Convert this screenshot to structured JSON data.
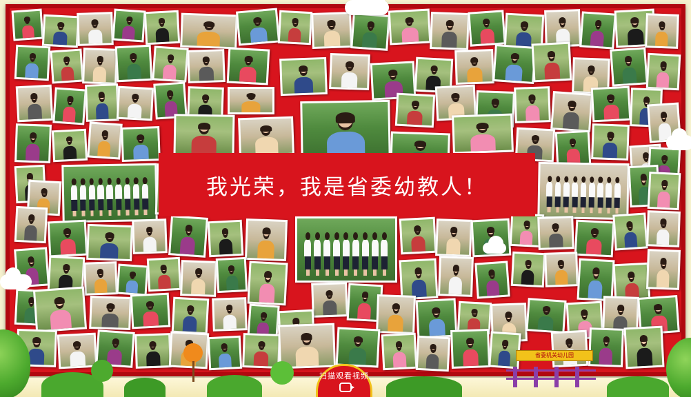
{
  "banner": {
    "text": "我光荣，我是省委幼教人！"
  },
  "scan_badge": {
    "label": "扫描观看视频"
  },
  "gate_sign": {
    "label": "省委机关幼儿园"
  },
  "colors": {
    "board_red": "#d8141d",
    "frame_dark_red": "#b0080f",
    "photo_border": "#ffffff",
    "uniform_white": "#fafafa",
    "skirt_navy": "#1d2233",
    "tree_green": "#4daa2e",
    "badge_gold": "#f2c21a",
    "fence_purple": "#8a3ea8"
  },
  "icons": [
    "camera-icon",
    "cloud-icon",
    "tree-icon",
    "fence-icon"
  ]
}
